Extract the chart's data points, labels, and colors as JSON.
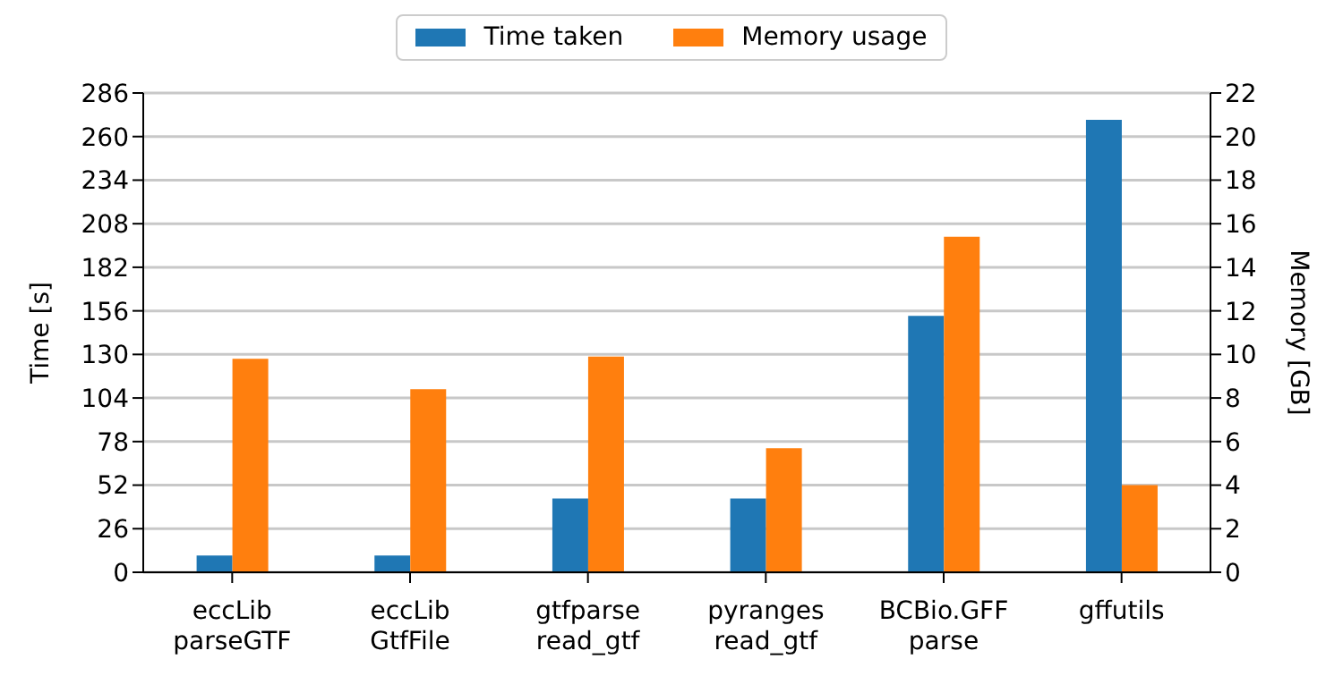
{
  "chart_data": {
    "type": "bar",
    "ylabel": "Time [s]",
    "y2label": "Memory [GB]",
    "categories": [
      "eccLib\nparseGTF",
      "eccLib\nGtfFile",
      "gtfparse\nread_gtf",
      "pyranges\nread_gtf",
      "BCBio.GFF\nparse",
      "gffutils"
    ],
    "series": [
      {
        "name": "Time taken",
        "color": "#1f77b4",
        "values": [
          10,
          10,
          44,
          44,
          153,
          270
        ]
      },
      {
        "name": "Memory usage",
        "color": "#ff7f0e",
        "axis": "y2",
        "values": [
          9.8,
          8.4,
          9.9,
          5.7,
          15.4,
          4.0
        ]
      }
    ],
    "ylim": [
      0,
      286
    ],
    "yticks": [
      0,
      26,
      52,
      78,
      104,
      130,
      156,
      182,
      208,
      234,
      260,
      286
    ],
    "y2lim": [
      0,
      22
    ],
    "y2ticks": [
      0,
      2,
      4,
      6,
      8,
      10,
      12,
      14,
      16,
      18,
      20,
      22
    ],
    "grid": "y",
    "legend": "top"
  }
}
